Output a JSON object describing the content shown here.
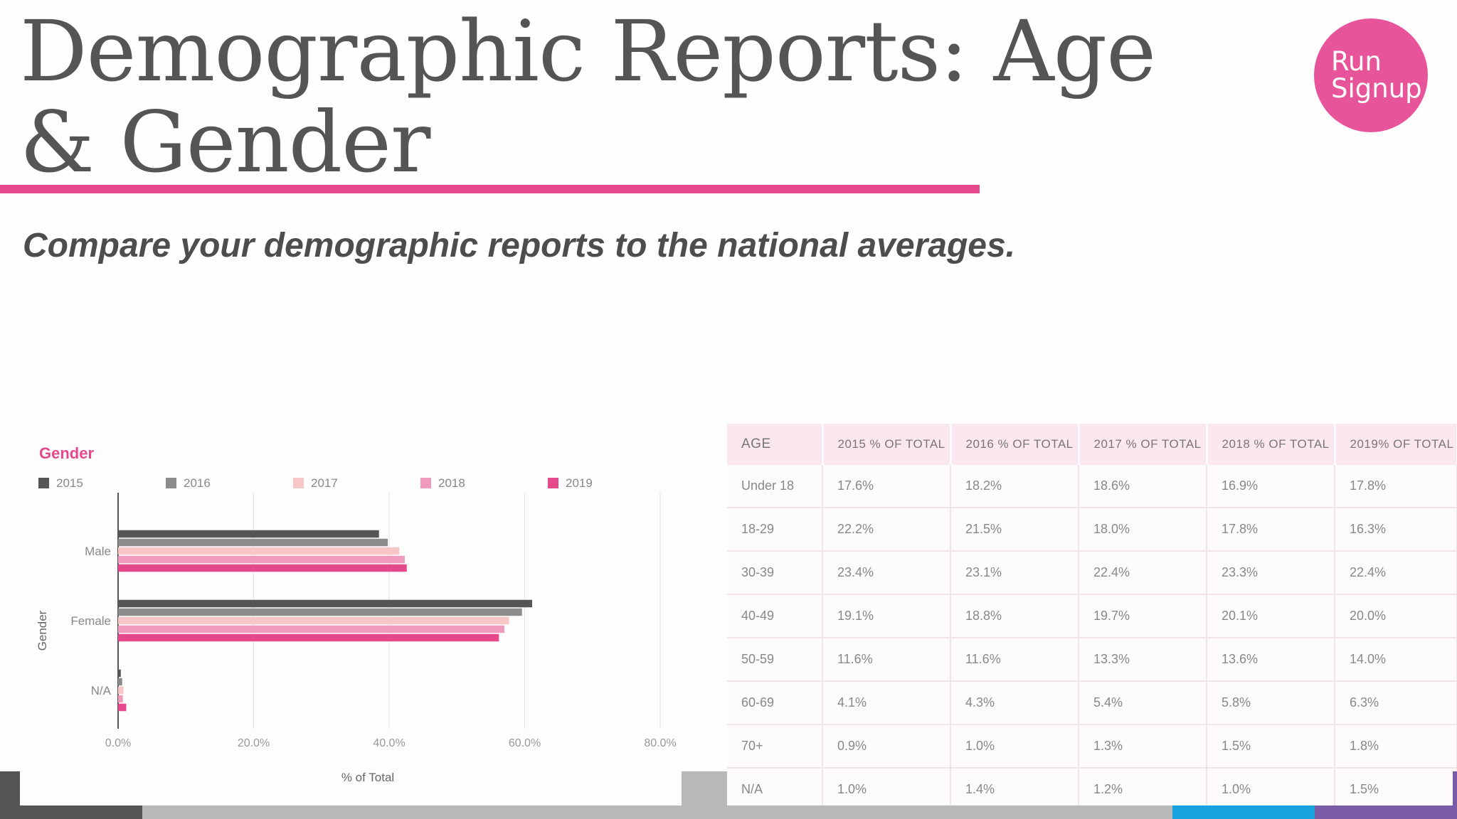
{
  "slide": {
    "title": "Demographic Reports: Age & Gender",
    "subtitle": "Compare your demographic reports to the national averages.",
    "logo_line1": "Run",
    "logo_line2": "Signup"
  },
  "colors": {
    "accent": "#e5498c",
    "title_text": "#555555",
    "logo_bg": "#e8549a"
  },
  "chart_data": {
    "type": "bar",
    "orientation": "horizontal",
    "title": "Gender",
    "xlabel": "% of Total",
    "ylabel": "Gender",
    "categories": [
      "Male",
      "Female",
      "N/A"
    ],
    "xlim": [
      0,
      80
    ],
    "xticks": [
      "0.0%",
      "20.0%",
      "40.0%",
      "60.0%",
      "80.0%"
    ],
    "legend_position": "top",
    "grid": true,
    "series": [
      {
        "name": "2015",
        "color": "#555555",
        "values": [
          38.5,
          61.1,
          0.4
        ]
      },
      {
        "name": "2016",
        "color": "#8c8c8c",
        "values": [
          39.8,
          59.6,
          0.6
        ]
      },
      {
        "name": "2017",
        "color": "#f7c6c6",
        "values": [
          41.5,
          57.7,
          0.8
        ]
      },
      {
        "name": "2018",
        "color": "#ee9bbd",
        "values": [
          42.3,
          57.0,
          0.7
        ]
      },
      {
        "name": "2019",
        "color": "#e5498c",
        "values": [
          42.6,
          56.2,
          1.2
        ]
      }
    ]
  },
  "age_table": {
    "headers": [
      "AGE",
      "2015 % OF TOTAL",
      "2016 % OF TOTAL",
      "2017 % OF TOTAL",
      "2018 % OF TOTAL",
      "2019% OF TOTAL"
    ],
    "rows": [
      [
        "Under 18",
        "17.6%",
        "18.2%",
        "18.6%",
        "16.9%",
        "17.8%"
      ],
      [
        "18-29",
        "22.2%",
        "21.5%",
        "18.0%",
        "17.8%",
        "16.3%"
      ],
      [
        "30-39",
        "23.4%",
        "23.1%",
        "22.4%",
        "23.3%",
        "22.4%"
      ],
      [
        "40-49",
        "19.1%",
        "18.8%",
        "19.7%",
        "20.1%",
        "20.0%"
      ],
      [
        "50-59",
        "11.6%",
        "11.6%",
        "13.3%",
        "13.6%",
        "14.0%"
      ],
      [
        "60-69",
        "4.1%",
        "4.3%",
        "5.4%",
        "5.8%",
        "6.3%"
      ],
      [
        "70+",
        "0.9%",
        "1.0%",
        "1.3%",
        "1.5%",
        "1.8%"
      ],
      [
        "N/A",
        "1.0%",
        "1.4%",
        "1.2%",
        "1.0%",
        "1.5%"
      ]
    ]
  },
  "footer_bar": [
    {
      "color": "#555555"
    },
    {
      "color": "#b8b8b8"
    },
    {
      "color": "#16a2dd"
    },
    {
      "color": "#7a5ba8"
    }
  ]
}
